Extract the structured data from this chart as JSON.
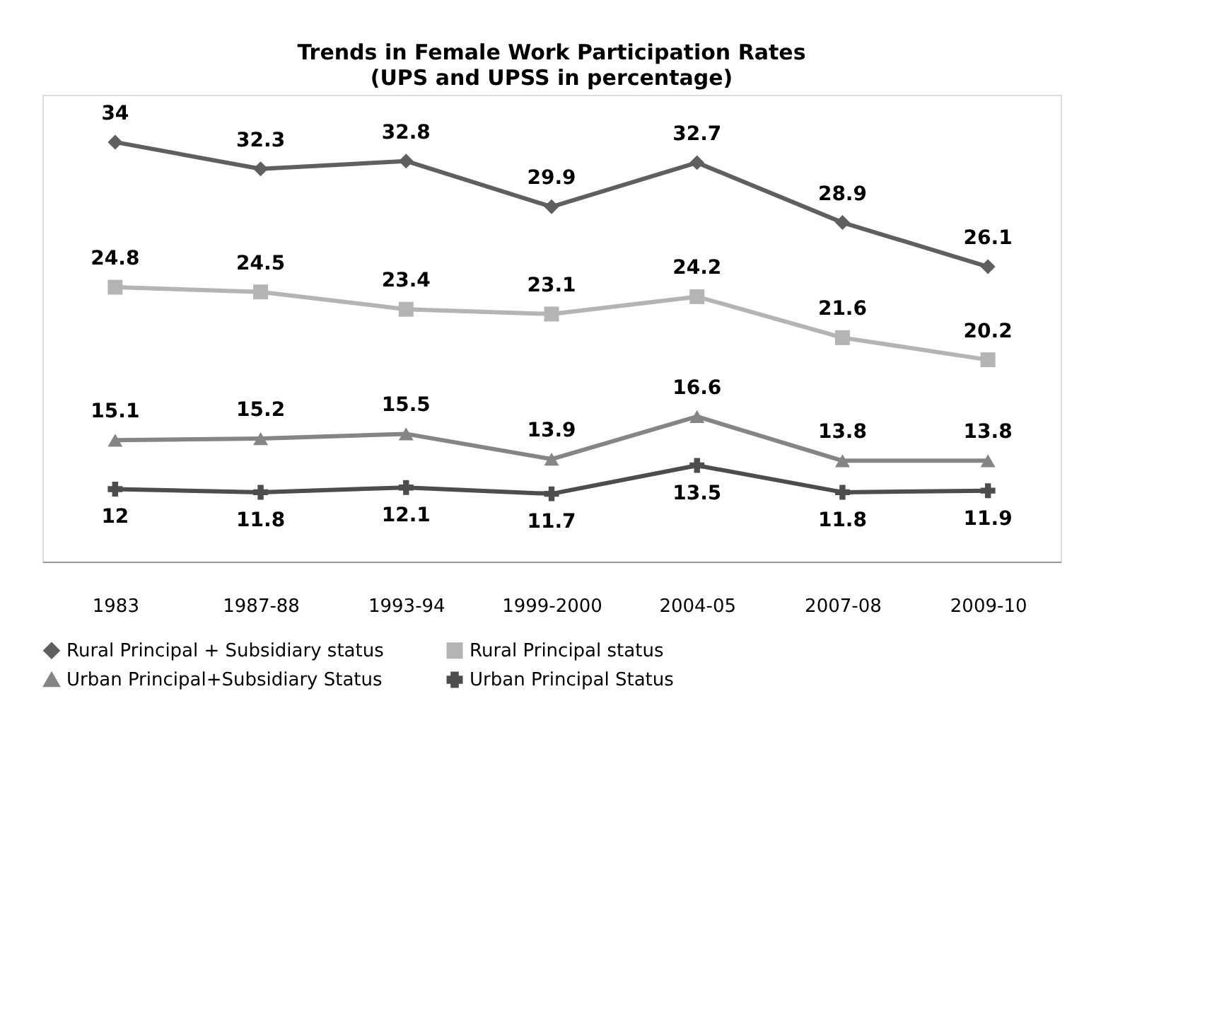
{
  "chart_data": {
    "type": "line",
    "title": "Trends in Female Work Participation Rates",
    "subtitle": "(UPS and UPSS in percentage)",
    "categories": [
      "1983",
      "1987-88",
      "1993-94",
      "1999-2000",
      "2004-05",
      "2007-08",
      "2009-10"
    ],
    "series": [
      {
        "name": "Rural Principal + Subsidiary status",
        "color": "#5f5f5f",
        "marker": "diamond",
        "values": [
          34,
          32.3,
          32.8,
          29.9,
          32.7,
          28.9,
          26.1
        ]
      },
      {
        "name": "Rural Principal status",
        "color": "#b4b4b4",
        "marker": "square",
        "values": [
          24.8,
          24.5,
          23.4,
          23.1,
          24.2,
          21.6,
          20.2
        ]
      },
      {
        "name": "Urban Principal+Subsidiary Status",
        "color": "#858585",
        "marker": "triangle",
        "values": [
          15.1,
          15.2,
          15.5,
          13.9,
          16.6,
          13.8,
          13.8
        ]
      },
      {
        "name": "Urban Principal Status",
        "color": "#4d4d4d",
        "marker": "cross",
        "values": [
          12,
          11.8,
          12.1,
          11.7,
          13.5,
          11.8,
          11.9
        ]
      }
    ],
    "ylim": [
      7.4,
      37
    ],
    "data_labels": true,
    "legend": "bottom",
    "grid": false,
    "tick_labels": "x",
    "line_style": "solid"
  }
}
